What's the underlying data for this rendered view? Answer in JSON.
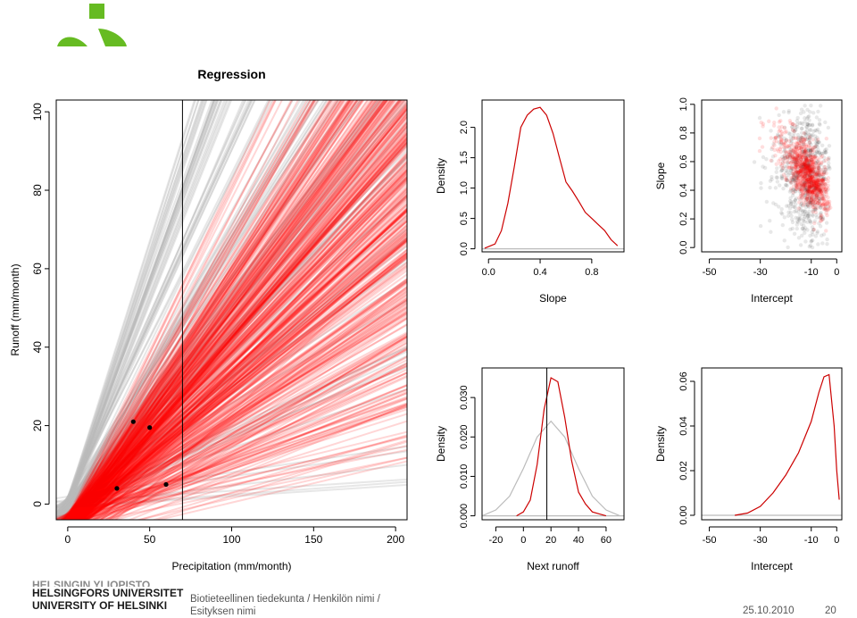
{
  "footer": {
    "university_lines": [
      "HELSINGIN YLIOPISTO",
      "HELSINGFORS UNIVERSITET",
      "UNIVERSITY OF HELSINKI"
    ],
    "department_lines": [
      "Biotieteellinen tiedekunta / Henkilön nimi /",
      "Esityksen nimi"
    ],
    "date": "25.10.2010",
    "page": "20"
  },
  "colors": {
    "accent_red": "#ff0000",
    "grey_lines": "#bbbbbb",
    "logo_green": "#66bb22"
  },
  "chart_data": [
    {
      "id": "regression",
      "type": "line",
      "title": "Regression",
      "xlabel": "Precipitation (mm/month)",
      "ylabel": "Runoff (mm/month)",
      "xlim": [
        -7,
        207
      ],
      "ylim": [
        -4,
        103
      ],
      "xticks": [
        0,
        50,
        100,
        150,
        200
      ],
      "yticks": [
        0,
        20,
        40,
        60,
        80,
        100
      ],
      "vertical_line_x": 70,
      "description_of_lines": "many sampled regression lines: red (posterior) and light grey (prior)",
      "points": [
        {
          "x": 30,
          "y": 4
        },
        {
          "x": 40,
          "y": 21
        },
        {
          "x": 50,
          "y": 19.5
        },
        {
          "x": 60,
          "y": 5
        }
      ]
    },
    {
      "id": "slope-density",
      "type": "line",
      "xlabel": "Slope",
      "ylabel": "Density",
      "xlim": [
        -0.05,
        1.05
      ],
      "ylim": [
        -0.05,
        2.45
      ],
      "xticks": [
        0.0,
        0.4,
        0.8
      ],
      "xtick_labels": [
        "0.0",
        "0.4",
        "0.8"
      ],
      "yticks": [
        0.0,
        0.5,
        1.0,
        1.5,
        2.0
      ],
      "ytick_labels": [
        "0.0",
        "0.5",
        "1.0",
        "1.5",
        "2.0"
      ],
      "series": [
        {
          "color": "#cc0000",
          "x": [
            -0.03,
            0.05,
            0.1,
            0.15,
            0.2,
            0.25,
            0.3,
            0.35,
            0.4,
            0.45,
            0.5,
            0.55,
            0.6,
            0.65,
            0.7,
            0.75,
            0.8,
            0.85,
            0.9,
            0.95,
            1.0
          ],
          "y": [
            0.01,
            0.08,
            0.3,
            0.75,
            1.35,
            2.0,
            2.2,
            2.3,
            2.33,
            2.2,
            1.9,
            1.5,
            1.1,
            0.95,
            0.78,
            0.6,
            0.5,
            0.4,
            0.3,
            0.15,
            0.05
          ]
        },
        {
          "color": "#bbbbbb",
          "x": [
            -0.05,
            1.05
          ],
          "y": [
            0.0,
            0.0
          ]
        }
      ]
    },
    {
      "id": "slope-vs-intercept",
      "type": "scatter",
      "xlabel": "Intercept",
      "ylabel": "Slope",
      "xlim": [
        -53,
        2
      ],
      "ylim": [
        -0.03,
        1.03
      ],
      "xticks": [
        -50,
        -30,
        -10,
        0
      ],
      "yticks": [
        0.0,
        0.2,
        0.4,
        0.6,
        0.8,
        1.0
      ],
      "ytick_labels": [
        "0.0",
        "0.2",
        "0.4",
        "0.6",
        "0.8",
        "1.0"
      ],
      "clouds": [
        {
          "color": "#000000",
          "center": [
            -8,
            0.48
          ],
          "spread": [
            8,
            0.22
          ],
          "slope_per_unit": -0.005
        },
        {
          "color": "#ff0000",
          "center": [
            -8,
            0.45
          ],
          "spread": [
            7,
            0.1
          ],
          "slope_per_unit": -0.018
        }
      ]
    },
    {
      "id": "next-runoff-density",
      "type": "line",
      "xlabel": "Next runoff",
      "ylabel": "Density",
      "xlim": [
        -30,
        73
      ],
      "ylim": [
        -0.001,
        0.0375
      ],
      "xticks": [
        -20,
        0,
        20,
        40,
        60
      ],
      "yticks": [
        0.0,
        0.01,
        0.02,
        0.03
      ],
      "ytick_labels": [
        "0.000",
        "0.010",
        "0.020",
        "0.030"
      ],
      "vertical_line_x": 17,
      "series": [
        {
          "color": "#cc0000",
          "x": [
            -5,
            0,
            5,
            10,
            15,
            20,
            25,
            30,
            35,
            40,
            45,
            50,
            55,
            60
          ],
          "y": [
            0.0,
            0.001,
            0.004,
            0.013,
            0.027,
            0.035,
            0.034,
            0.025,
            0.014,
            0.006,
            0.003,
            0.001,
            0.0005,
            0.0
          ]
        },
        {
          "color": "#bbbbbb",
          "x": [
            -30,
            -20,
            -10,
            0,
            10,
            20,
            30,
            40,
            50,
            60,
            70
          ],
          "y": [
            0.0,
            0.0015,
            0.005,
            0.012,
            0.02,
            0.024,
            0.02,
            0.012,
            0.005,
            0.0015,
            0.0
          ]
        },
        {
          "color": "#bbbbbb",
          "x": [
            -30,
            73
          ],
          "y": [
            0.0,
            0.0
          ]
        }
      ]
    },
    {
      "id": "intercept-density",
      "type": "line",
      "xlabel": "Intercept",
      "ylabel": "Density",
      "xlim": [
        -53,
        2
      ],
      "ylim": [
        -0.002,
        0.066
      ],
      "xticks": [
        -50,
        -30,
        -10,
        0
      ],
      "yticks": [
        0.0,
        0.02,
        0.04,
        0.06
      ],
      "ytick_labels": [
        "0.00",
        "0.02",
        "0.04",
        "0.06"
      ],
      "series": [
        {
          "color": "#cc0000",
          "x": [
            -40,
            -35,
            -30,
            -25,
            -20,
            -15,
            -10,
            -7,
            -5,
            -3,
            -1,
            0,
            1
          ],
          "y": [
            0.0,
            0.001,
            0.004,
            0.01,
            0.018,
            0.028,
            0.042,
            0.055,
            0.062,
            0.063,
            0.04,
            0.02,
            0.007
          ]
        },
        {
          "color": "#bbbbbb",
          "x": [
            -53,
            2
          ],
          "y": [
            0.0,
            0.0
          ]
        }
      ]
    }
  ]
}
